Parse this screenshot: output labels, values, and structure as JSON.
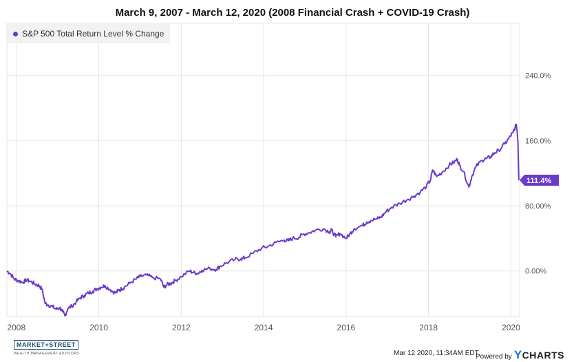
{
  "chart_data": {
    "type": "line",
    "title": "March 9, 2007 - March 12, 2020 (2008 Financial Crash + COVID-19 Crash)",
    "y_ticks": [
      "0.00%",
      "80.00%",
      "160.0%",
      "240.0%"
    ],
    "y_tick_values": [
      0,
      80,
      160,
      240
    ],
    "x_ticks": [
      "2008",
      "2010",
      "2012",
      "2014",
      "2016",
      "2018",
      "2020"
    ],
    "x_tick_values": [
      2008,
      2010,
      2012,
      2014,
      2016,
      2018,
      2020
    ],
    "ylim": [
      -56,
      304
    ],
    "xlim": [
      2007.77,
      2020.21
    ],
    "grid": true,
    "legend_position": "top-left",
    "series": [
      {
        "name": "S&P 500 Total Return Level % Change",
        "color": "#6a3bc8",
        "last_value_label": "111.4%",
        "x": [
          2007.77,
          2007.85,
          2007.95,
          2008.05,
          2008.15,
          2008.25,
          2008.35,
          2008.45,
          2008.55,
          2008.62,
          2008.7,
          2008.78,
          2008.88,
          2008.97,
          2009.05,
          2009.12,
          2009.18,
          2009.25,
          2009.35,
          2009.45,
          2009.55,
          2009.65,
          2009.75,
          2009.85,
          2009.95,
          2010.05,
          2010.15,
          2010.28,
          2010.4,
          2010.48,
          2010.55,
          2010.62,
          2010.75,
          2010.9,
          2011.0,
          2011.15,
          2011.3,
          2011.5,
          2011.58,
          2011.65,
          2011.75,
          2011.85,
          2012.0,
          2012.2,
          2012.3,
          2012.4,
          2012.5,
          2012.7,
          2012.85,
          2012.95,
          2013.1,
          2013.3,
          2013.45,
          2013.55,
          2013.75,
          2013.95,
          2014.1,
          2014.3,
          2014.5,
          2014.6,
          2014.7,
          2014.85,
          2014.95,
          2015.1,
          2015.25,
          2015.45,
          2015.6,
          2015.65,
          2015.75,
          2015.85,
          2016.0,
          2016.1,
          2016.2,
          2016.4,
          2016.5,
          2016.6,
          2016.75,
          2016.85,
          2016.95,
          2017.1,
          2017.3,
          2017.5,
          2017.65,
          2017.8,
          2017.95,
          2018.05,
          2018.1,
          2018.2,
          2018.35,
          2018.5,
          2018.6,
          2018.7,
          2018.75,
          2018.85,
          2018.98,
          2019.05,
          2019.15,
          2019.3,
          2019.4,
          2019.5,
          2019.6,
          2019.7,
          2019.85,
          2019.95,
          2020.05,
          2020.1,
          2020.13,
          2020.15,
          2020.17,
          2020.19
        ],
        "values": [
          0,
          -3,
          -10,
          -12,
          -14,
          -11,
          -13,
          -16,
          -18,
          -22,
          -40,
          -42,
          -44,
          -47,
          -45,
          -50,
          -55,
          -46,
          -43,
          -38,
          -33,
          -30,
          -27,
          -25,
          -22,
          -20,
          -18,
          -23,
          -27,
          -24,
          -22,
          -20,
          -15,
          -10,
          -7,
          -5,
          -8,
          -10,
          -20,
          -17,
          -15,
          -12,
          -7,
          0,
          -2,
          -3,
          1,
          3,
          2,
          6,
          10,
          14,
          15,
          16,
          22,
          28,
          30,
          35,
          38,
          37,
          40,
          41,
          45,
          47,
          50,
          52,
          48,
          50,
          42,
          46,
          40,
          46,
          52,
          56,
          60,
          62,
          64,
          66,
          72,
          78,
          83,
          88,
          92,
          97,
          104,
          112,
          124,
          116,
          122,
          130,
          133,
          137,
          130,
          122,
          103,
          116,
          128,
          136,
          138,
          140,
          145,
          148,
          156,
          163,
          170,
          176,
          180,
          172,
          158,
          111.4
        ]
      }
    ]
  },
  "footer": {
    "logo_text": "MARKET+STREET",
    "logo_subtext": "WEALTH MANAGEMENT ADVISORS",
    "timestamp": "Mar 12 2020, 11:34AM EDT.",
    "powered_by": "Powered by",
    "brand_y": "Y",
    "brand_rest": "CHARTS"
  }
}
